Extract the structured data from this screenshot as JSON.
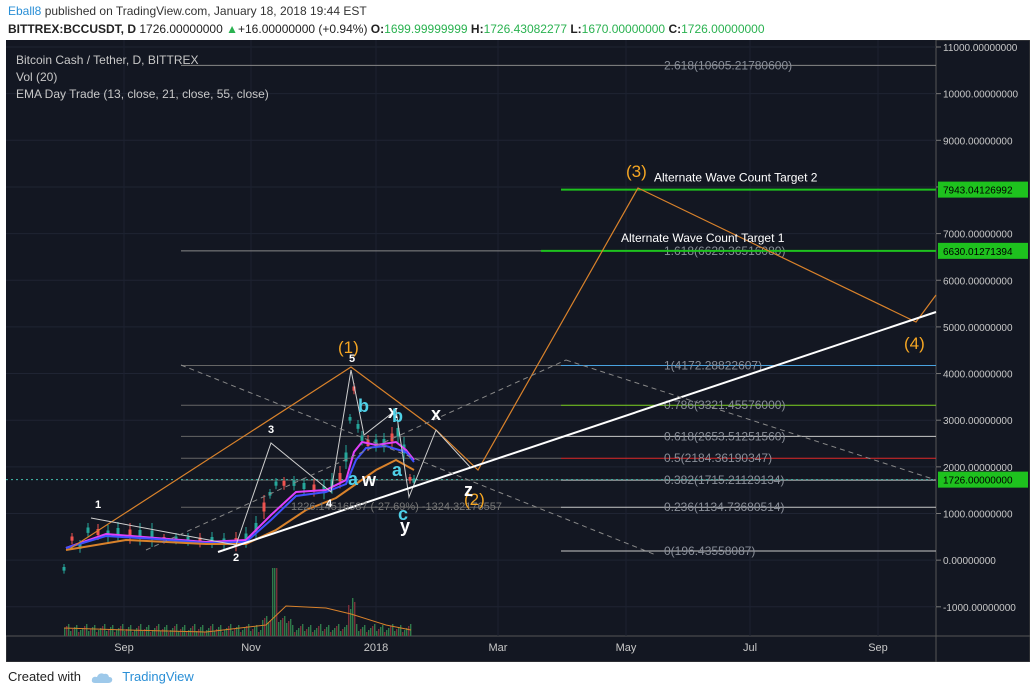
{
  "header": {
    "author": "Eball8",
    "published_text": "published on TradingView.com, January 18, 2018 19:44 EST",
    "symbol": "BITTREX:BCCUSDT, D",
    "price": "1726.00000000",
    "change": "+16.00000000 (+0.94%)",
    "o_label": "O:",
    "o": "1699.99999999",
    "h_label": "H:",
    "h": "1726.43082277",
    "l_label": "L:",
    "l": "1670.00000000",
    "c_label": "C:",
    "c": "1726.00000000"
  },
  "legend": {
    "line1": "Bitcoin Cash / Tether, D, BITTREX",
    "line2": "Vol (20)",
    "line3": "EMA Day Trade (13, close, 21, close, 55, close)"
  },
  "footer": {
    "created": "Created with",
    "brand": "TradingView"
  },
  "chart_data": {
    "type": "line",
    "title": "Bitcoin Cash / Tether, D, BITTREX",
    "ylim": [
      -1500,
      11000
    ],
    "y_ticks": [
      "11000.00000000",
      "10000.00000000",
      "9000.00000000",
      "8000.00000000",
      "7000.00000000",
      "6000.00000000",
      "5000.00000000",
      "4000.00000000",
      "3000.00000000",
      "2000.00000000",
      "1000.00000000",
      "0.00000000",
      "-1000.00000000"
    ],
    "y_tick_values": [
      11000,
      10000,
      9000,
      8000,
      7000,
      6000,
      5000,
      4000,
      3000,
      2000,
      1000,
      0,
      -1000
    ],
    "x_labels": [
      "Sep",
      "Nov",
      "2018",
      "Mar",
      "May",
      "Jul",
      "Sep"
    ],
    "price_tags": [
      {
        "label": "7943.04126992",
        "value": 7943.04,
        "color": "#1ec21e"
      },
      {
        "label": "6630.01271394",
        "value": 6630.01,
        "color": "#1ec21e"
      },
      {
        "label": "1726.00000000",
        "value": 1726,
        "color": "#1ec21e"
      }
    ],
    "fib_levels": [
      {
        "label": "2.618(10605.21780600)",
        "value": 10605.22
      },
      {
        "label": "1.618(6629.36516080)",
        "value": 6629.37
      },
      {
        "label": "1(4172.28822607)",
        "value": 4172.29
      },
      {
        "label": "0.786(3321.45576000)",
        "value": 3321.46
      },
      {
        "label": "0.618(2653.51251560)",
        "value": 2653.51
      },
      {
        "label": "0.5(2184.36190347)",
        "value": 2184.36
      },
      {
        "label": "0.382(1715.21129134)",
        "value": 1715.21
      },
      {
        "label": "0.236(1134.73680514)",
        "value": 1134.74
      },
      {
        "label": "0(196.43558087)",
        "value": 196.44
      }
    ],
    "annotations": [
      {
        "text": "Alternate Wave Count Target 2",
        "value": 7943.04
      },
      {
        "text": "Alternate Wave Count Target 1",
        "value": 6630.01
      }
    ],
    "wave_labels_main": [
      "(1)",
      "(2)",
      "(3)",
      "(4)"
    ],
    "wave_labels_minor": [
      "1",
      "2",
      "3",
      "4",
      "5"
    ],
    "wave_labels_abc": [
      "a",
      "b",
      "c",
      "w",
      "x",
      "y",
      "z",
      "x",
      "a",
      "b"
    ],
    "fib_ext_text": "1226.14516587 (-27.69%) -1324.32176557"
  }
}
